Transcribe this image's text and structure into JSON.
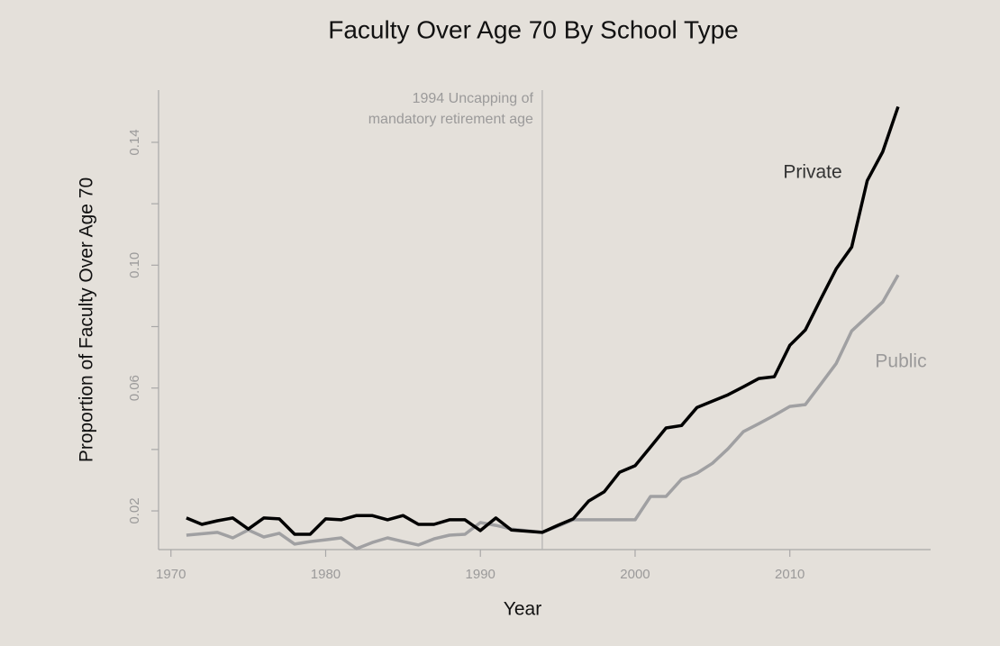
{
  "chart_data": {
    "type": "line",
    "title": "Faculty Over Age 70 By School Type",
    "x_label": "Year",
    "y_label": "Proportion of Faculty Over Age 70",
    "xlim": [
      1969.2,
      2019.1
    ],
    "xticks": [
      1970,
      1980,
      1990,
      2000,
      2010
    ],
    "ylim": [
      0.0074,
      0.157
    ],
    "yticks": [
      0.02,
      0.06,
      {
        "value": 0.1,
        "label": "0.10"
      },
      0.14
    ],
    "yticks_minor": [
      0.04,
      0.08,
      0.12
    ],
    "annotation": {
      "x": 1994,
      "lines": [
        "1994 Uncapping of",
        "mandatory retirement age"
      ]
    },
    "series": [
      {
        "name": "Private",
        "color": "#000000",
        "x": [
          1971,
          1972,
          1973,
          1974,
          1975,
          1976,
          1977,
          1978,
          1979,
          1980,
          1981,
          1982,
          1983,
          1984,
          1985,
          1986,
          1987,
          1988,
          1989,
          1990,
          1991,
          1992,
          1994,
          1995,
          1996,
          1997,
          1998,
          1999,
          2000,
          2001,
          2002,
          2003,
          2004,
          2005,
          2006,
          2007,
          2008,
          2009,
          2010,
          2011,
          2012,
          2013,
          2014,
          2015,
          2016,
          2017
        ],
        "values": [
          0.0177,
          0.0156,
          0.0168,
          0.0177,
          0.0141,
          0.0177,
          0.0174,
          0.0124,
          0.0124,
          0.0174,
          0.0171,
          0.0185,
          0.0185,
          0.0171,
          0.0185,
          0.0156,
          0.0156,
          0.0171,
          0.0171,
          0.0136,
          0.0177,
          0.0138,
          0.013,
          0.0153,
          0.0174,
          0.0232,
          0.0262,
          0.0326,
          0.0347,
          0.0408,
          0.047,
          0.0478,
          0.0537,
          0.0557,
          0.0578,
          0.0604,
          0.0631,
          0.0637,
          0.0739,
          0.0789,
          0.089,
          0.0988,
          0.1059,
          0.1275,
          0.1369,
          0.1516
        ]
      },
      {
        "name": "Public",
        "color": "#a0a0a2",
        "x": [
          1971,
          1973,
          1974,
          1975,
          1976,
          1977,
          1978,
          1979,
          1980,
          1981,
          1982,
          1983,
          1984,
          1985,
          1986,
          1987,
          1988,
          1989,
          1990,
          1991,
          1992,
          1994,
          1995,
          1996,
          1997,
          1998,
          1999,
          2000,
          2001,
          2002,
          2003,
          2004,
          2005,
          2006,
          2007,
          2008,
          2009,
          2010,
          2011,
          2012,
          2013,
          2014,
          2015,
          2016,
          2017
        ],
        "values": [
          0.0121,
          0.013,
          0.0112,
          0.0138,
          0.0115,
          0.0127,
          0.0092,
          0.01,
          0.0106,
          0.0112,
          0.0077,
          0.0097,
          0.0112,
          0.01,
          0.0089,
          0.0109,
          0.0121,
          0.0124,
          0.0162,
          0.0153,
          0.0141,
          0.013,
          0.015,
          0.0171,
          0.0171,
          0.0171,
          0.0171,
          0.0171,
          0.0247,
          0.0247,
          0.0303,
          0.0323,
          0.0355,
          0.0402,
          0.0458,
          0.0484,
          0.0511,
          0.054,
          0.0546,
          0.0613,
          0.068,
          0.0786,
          0.0833,
          0.088,
          0.0968
        ]
      }
    ]
  }
}
